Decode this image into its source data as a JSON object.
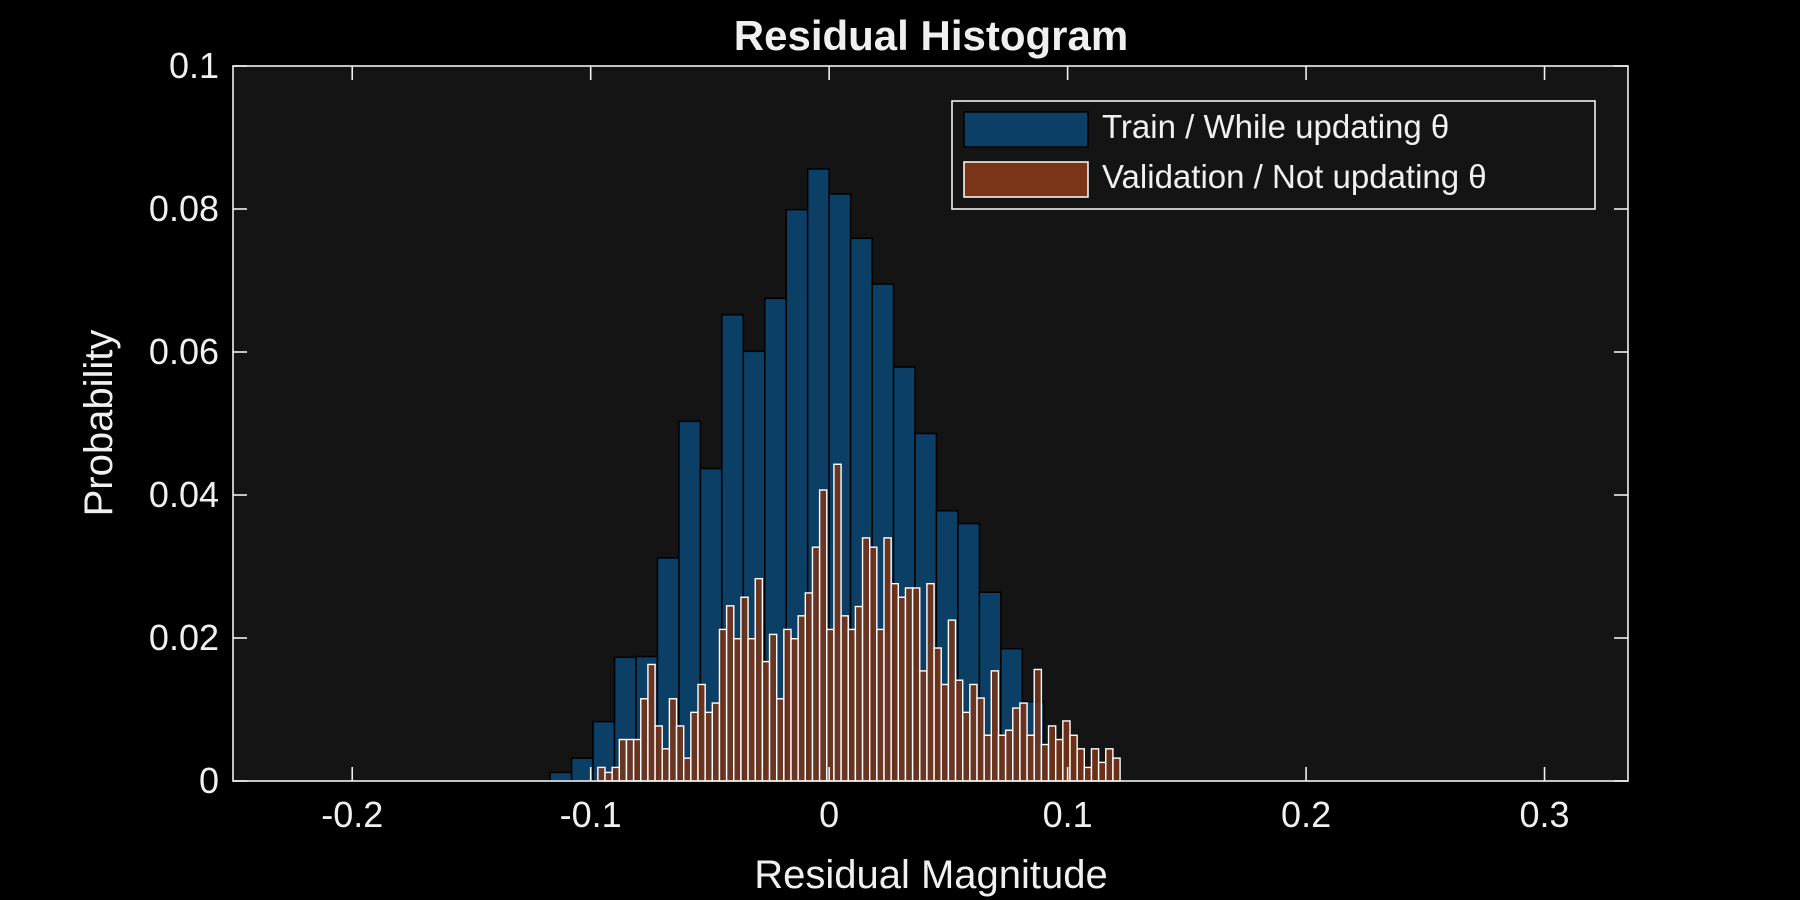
{
  "chart_data": {
    "type": "bar",
    "title": "Residual Histogram",
    "xlabel": "Residual Magnitude",
    "ylabel": "Probability",
    "xlim": [
      -0.25,
      0.335
    ],
    "ylim": [
      0,
      0.1
    ],
    "xticks": [
      -0.2,
      -0.1,
      0,
      0.1,
      0.2,
      0.3
    ],
    "xtick_labels": [
      "-0.2",
      "-0.1",
      "0",
      "0.1",
      "0.2",
      "0.3"
    ],
    "yticks": [
      0,
      0.02,
      0.04,
      0.06,
      0.08,
      0.1
    ],
    "ytick_labels": [
      "0",
      "0.02",
      "0.04",
      "0.06",
      "0.08",
      "0.1"
    ],
    "legend_position": "top-right",
    "grid": false,
    "colors": {
      "background": "#000000",
      "plot_area": "#141414",
      "axes": "#f0f0f0",
      "series_train": "#0b3f66",
      "series_validation": "#7a3519"
    },
    "series": [
      {
        "name": "Train / While updating θ",
        "bin_width": 0.009,
        "bin_edges_start": -0.117,
        "values": [
          0.0012,
          0.0032,
          0.0083,
          0.0173,
          0.0174,
          0.0312,
          0.0503,
          0.0437,
          0.0652,
          0.0601,
          0.0675,
          0.0799,
          0.0856,
          0.0821,
          0.0759,
          0.0695,
          0.0579,
          0.0486,
          0.0378,
          0.036,
          0.0264,
          0.0185,
          0.0111
        ]
      },
      {
        "name": "Validation / Not updating θ",
        "bin_width": 0.003,
        "bin_edges_start": -0.097,
        "values": [
          0.0019,
          0.0012,
          0.0019,
          0.0058,
          0.0058,
          0.0058,
          0.0115,
          0.0163,
          0.0077,
          0.0045,
          0.0115,
          0.0077,
          0.0032,
          0.0096,
          0.0135,
          0.0096,
          0.0109,
          0.0212,
          0.0245,
          0.0199,
          0.0257,
          0.0199,
          0.0283,
          0.0167,
          0.0205,
          0.0115,
          0.0212,
          0.0199,
          0.0231,
          0.0263,
          0.0327,
          0.0407,
          0.0212,
          0.0443,
          0.0231,
          0.0212,
          0.0244,
          0.034,
          0.0327,
          0.0212,
          0.034,
          0.0276,
          0.0257,
          0.027,
          0.027,
          0.0154,
          0.0276,
          0.0186,
          0.0135,
          0.0225,
          0.0141,
          0.0096,
          0.0135,
          0.0116,
          0.0064,
          0.0154,
          0.0064,
          0.0071,
          0.0102,
          0.0109,
          0.0064,
          0.0156,
          0.0051,
          0.0077,
          0.0058,
          0.0084,
          0.0064,
          0.0045,
          0.0019,
          0.0045,
          0.0026,
          0.0045,
          0.0032
        ]
      }
    ]
  }
}
